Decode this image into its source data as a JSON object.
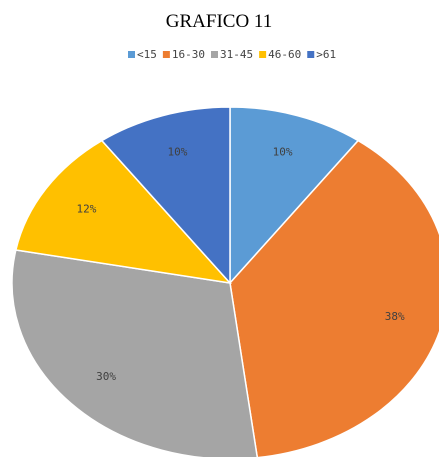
{
  "chart_data": {
    "type": "pie",
    "title": "GRAFICO 11",
    "categories": [
      "<15",
      "16-30",
      "31-45",
      "46-60",
      ">61"
    ],
    "values": [
      10,
      38,
      30,
      12,
      10
    ],
    "value_labels": [
      "10%",
      "38%",
      "30%",
      "12%",
      "10%"
    ],
    "colors": [
      "#5b9bd5",
      "#ed7d31",
      "#a5a5a5",
      "#ffc000",
      "#4472c4"
    ],
    "legend": "top"
  }
}
